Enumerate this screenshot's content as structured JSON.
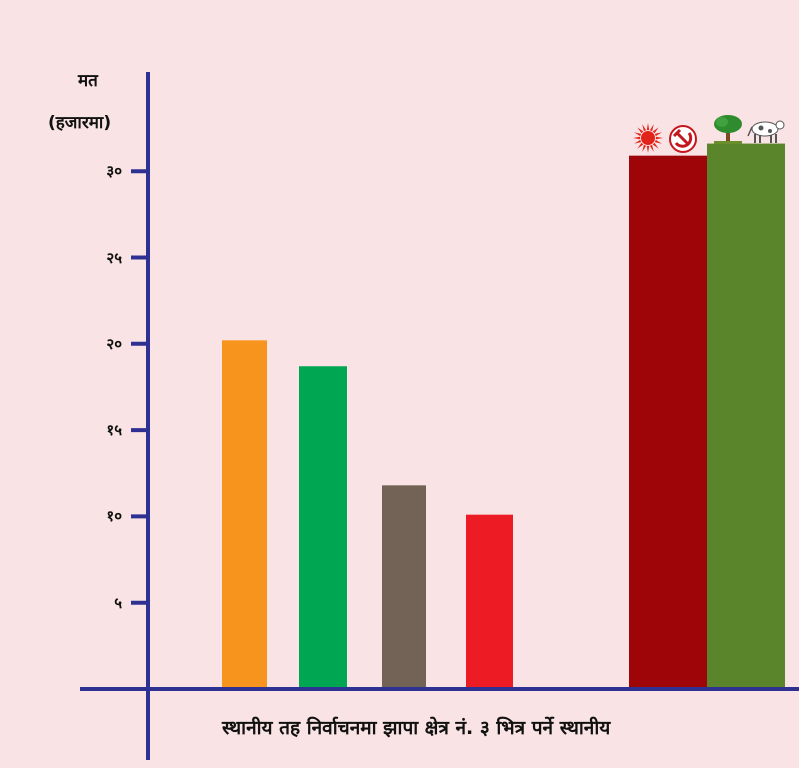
{
  "chart_data": {
    "type": "bar",
    "ylabel_line1": "मत",
    "ylabel_line2": "(हजारमा)",
    "xlabel": "स्थानीय तह निर्वाचनमा झापा क्षेत्र नं. ३ भित्र पर्ने स्थानीय",
    "ylim": [
      0,
      35
    ],
    "yticks": [
      5,
      10,
      15,
      20,
      25,
      30
    ],
    "ytick_labels": [
      "५",
      "१०",
      "१५",
      "२०",
      "२५",
      "३०"
    ],
    "bars": [
      {
        "value": 20.2,
        "color": "#f7941d"
      },
      {
        "value": 18.7,
        "color": "#00a651"
      },
      {
        "value": 11.8,
        "color": "#736357"
      },
      {
        "value": 10.1,
        "color": "#ed1c24"
      },
      {
        "value": 30.9,
        "color": "#9e0508"
      },
      {
        "value": 31.6,
        "color": "#5b852a"
      }
    ],
    "icons": [
      {
        "name": "sun-icon",
        "bar": 4
      },
      {
        "name": "hammer-sickle-icon",
        "bar": 4
      },
      {
        "name": "tree-icon",
        "bar": 5
      },
      {
        "name": "cow-icon",
        "bar": 5
      }
    ]
  },
  "colors": {
    "axis": "#2e3192",
    "background": "#f9e3e4"
  }
}
